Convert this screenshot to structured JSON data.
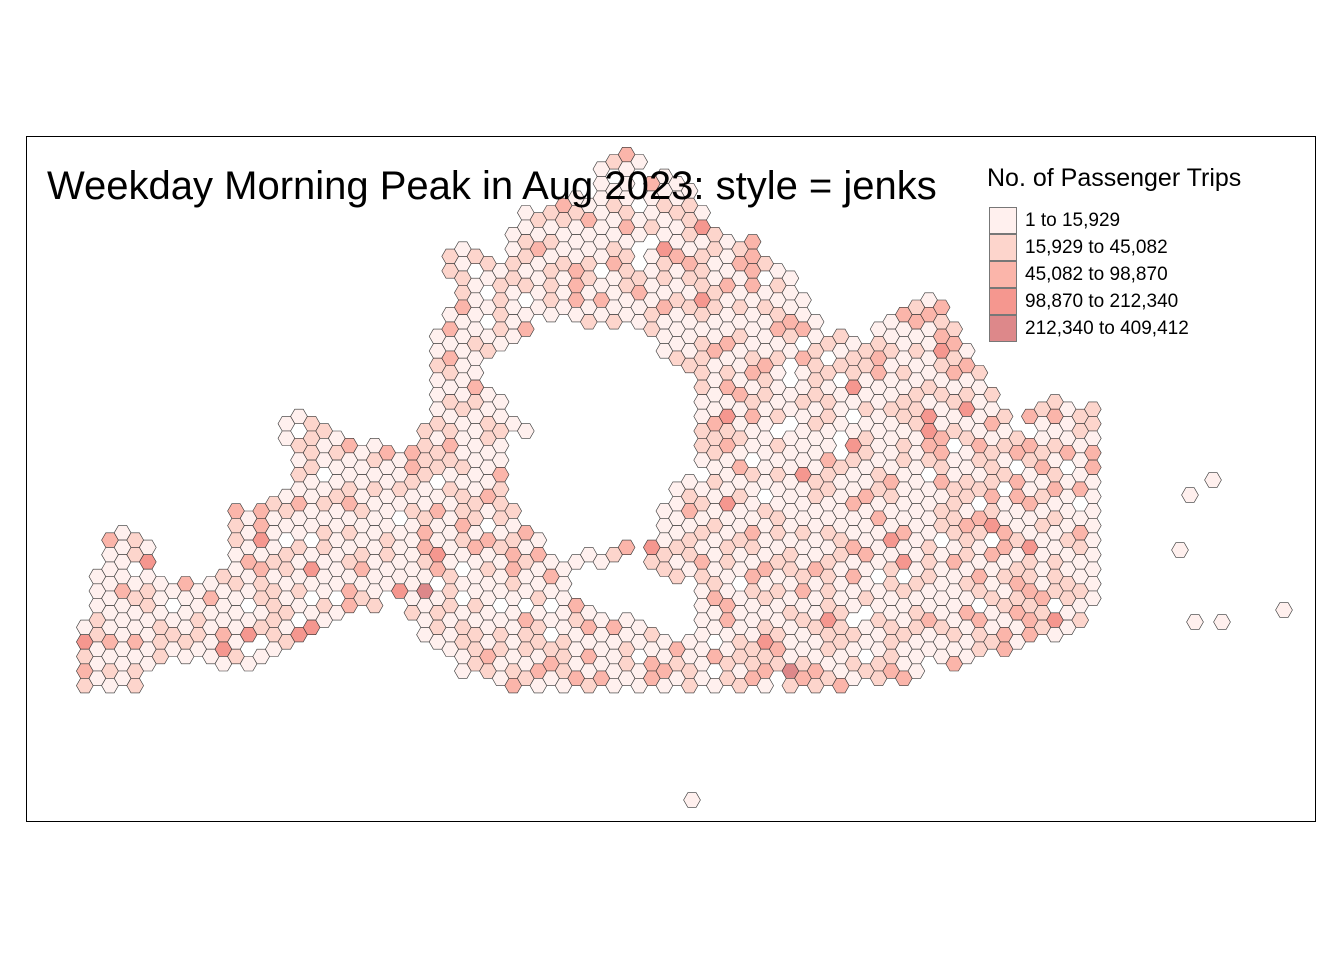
{
  "map": {
    "title": "Weekday Morning Peak in Aug 2023: style = jenks",
    "style": "jenks",
    "geometry": "hexagon grid",
    "border_color": "#333333",
    "frame": true
  },
  "legend": {
    "title": "No. of Passenger Trips",
    "classes": [
      {
        "label": "1 to 15,929",
        "color": "#fff0ee"
      },
      {
        "label": "15,929 to 45,082",
        "color": "#fdd5cc"
      },
      {
        "label": "45,082 to 98,870",
        "color": "#fbb5aa"
      },
      {
        "label": "98,870 to 212,340",
        "color": "#f5978f"
      },
      {
        "label": "212,340 to 409,412",
        "color": "#dd888a"
      }
    ]
  }
}
